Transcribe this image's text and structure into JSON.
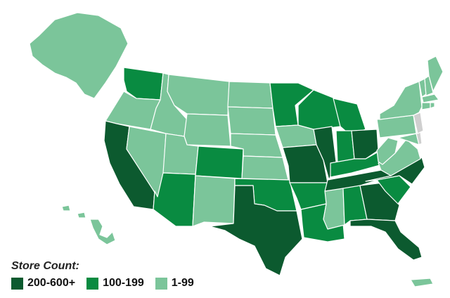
{
  "legend": {
    "title": "Store Count:",
    "tiers": [
      {
        "label": "200-600+",
        "color": "#0c5a2f"
      },
      {
        "label": "100-199",
        "color": "#098b41"
      },
      {
        "label": "1-99",
        "color": "#7bc59a"
      }
    ],
    "no_data_color": "#cfcfcf"
  },
  "states": [
    {
      "name": "Washington",
      "tier": 1
    },
    {
      "name": "Oregon",
      "tier": 2
    },
    {
      "name": "California",
      "tier": 0
    },
    {
      "name": "Nevada",
      "tier": 2
    },
    {
      "name": "Idaho",
      "tier": 2
    },
    {
      "name": "Montana",
      "tier": 2
    },
    {
      "name": "Wyoming",
      "tier": 2
    },
    {
      "name": "Utah",
      "tier": 2
    },
    {
      "name": "Arizona",
      "tier": 1
    },
    {
      "name": "Colorado",
      "tier": 1
    },
    {
      "name": "New Mexico",
      "tier": 2
    },
    {
      "name": "North Dakota",
      "tier": 2
    },
    {
      "name": "South Dakota",
      "tier": 2
    },
    {
      "name": "Nebraska",
      "tier": 2
    },
    {
      "name": "Kansas",
      "tier": 2
    },
    {
      "name": "Oklahoma",
      "tier": 1
    },
    {
      "name": "Texas",
      "tier": 0
    },
    {
      "name": "Minnesota",
      "tier": 1
    },
    {
      "name": "Iowa",
      "tier": 2
    },
    {
      "name": "Missouri",
      "tier": 0
    },
    {
      "name": "Arkansas",
      "tier": 1
    },
    {
      "name": "Louisiana",
      "tier": 1
    },
    {
      "name": "Wisconsin",
      "tier": 1
    },
    {
      "name": "Illinois",
      "tier": 0
    },
    {
      "name": "Michigan",
      "tier": 1
    },
    {
      "name": "Indiana",
      "tier": 1
    },
    {
      "name": "Ohio",
      "tier": 0
    },
    {
      "name": "Kentucky",
      "tier": 1
    },
    {
      "name": "Tennessee",
      "tier": 0
    },
    {
      "name": "Mississippi",
      "tier": 2
    },
    {
      "name": "Alabama",
      "tier": 1
    },
    {
      "name": "Georgia",
      "tier": 0
    },
    {
      "name": "Florida",
      "tier": 0
    },
    {
      "name": "South Carolina",
      "tier": 1
    },
    {
      "name": "North Carolina",
      "tier": 0
    },
    {
      "name": "Virginia",
      "tier": 2
    },
    {
      "name": "West Virginia",
      "tier": 2
    },
    {
      "name": "Pennsylvania",
      "tier": 2
    },
    {
      "name": "New York",
      "tier": 2
    },
    {
      "name": "New Jersey",
      "tier": 3
    },
    {
      "name": "Delaware",
      "tier": 3
    },
    {
      "name": "Maryland",
      "tier": 2
    },
    {
      "name": "Connecticut",
      "tier": 2
    },
    {
      "name": "Rhode Island",
      "tier": 2
    },
    {
      "name": "Massachusetts",
      "tier": 2
    },
    {
      "name": "Vermont",
      "tier": 2
    },
    {
      "name": "New Hampshire",
      "tier": 2
    },
    {
      "name": "Maine",
      "tier": 2
    },
    {
      "name": "Alaska",
      "tier": 2
    },
    {
      "name": "Hawaii",
      "tier": 2
    },
    {
      "name": "Puerto Rico",
      "tier": 2
    }
  ]
}
